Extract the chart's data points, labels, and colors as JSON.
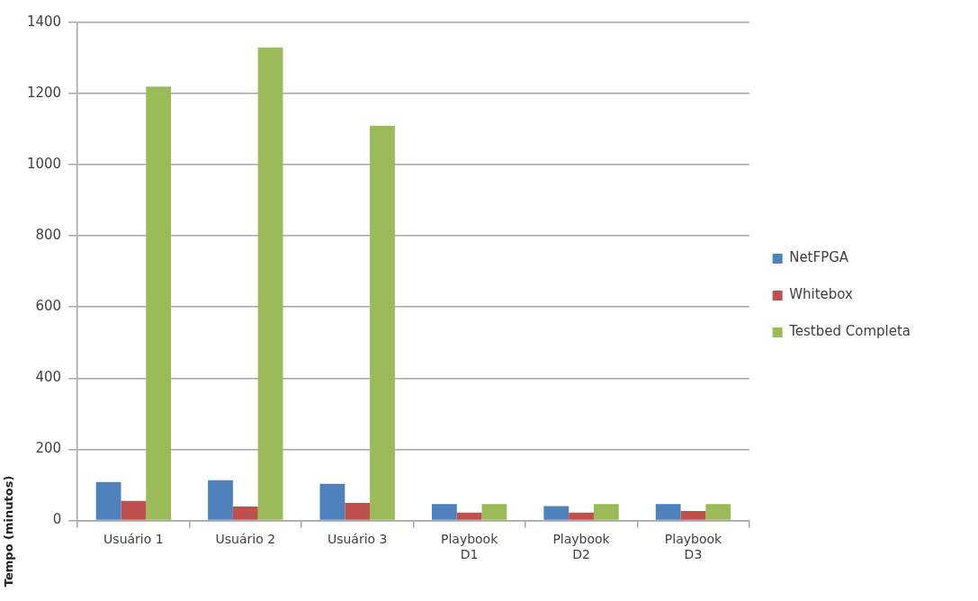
{
  "chart_data": {
    "type": "bar",
    "ylabel": "Tempo (minutos)",
    "categories": [
      "Usuário 1",
      "Usuário 2",
      "Usuário 3",
      "Playbook D1",
      "Playbook D2",
      "Playbook D3"
    ],
    "series": [
      {
        "name": "NetFPGA",
        "color": "#4f81bd",
        "values": [
          108,
          113,
          103,
          46,
          40,
          46
        ]
      },
      {
        "name": "Whitebox",
        "color": "#c0504d",
        "values": [
          55,
          39,
          49,
          22,
          22,
          26
        ]
      },
      {
        "name": "Testbed Completa",
        "color": "#9bbb59",
        "values": [
          1220,
          1330,
          1110,
          46,
          46,
          46
        ]
      }
    ],
    "ylim": [
      0,
      1400
    ],
    "yticks": [
      0,
      200,
      400,
      600,
      800,
      1000,
      1200,
      1400
    ],
    "grid": "y",
    "legend": "right"
  }
}
